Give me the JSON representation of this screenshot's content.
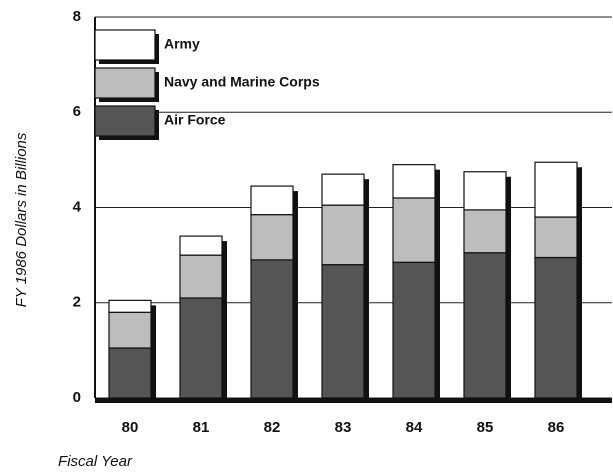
{
  "chart_data": {
    "type": "stacked_bar",
    "categories": [
      "80",
      "81",
      "82",
      "83",
      "84",
      "85",
      "86"
    ],
    "series": [
      {
        "name": "Air Force",
        "color": "#555555",
        "values": [
          1.05,
          2.1,
          2.9,
          2.8,
          2.85,
          3.05,
          2.95
        ]
      },
      {
        "name": "Navy and Marine Corps",
        "color": "#bdbdbd",
        "values": [
          0.75,
          0.9,
          0.95,
          1.25,
          1.35,
          0.9,
          0.85
        ]
      },
      {
        "name": "Army",
        "color": "#ffffff",
        "values": [
          0.25,
          0.4,
          0.6,
          0.65,
          0.7,
          0.8,
          1.15
        ]
      }
    ],
    "y_label": "FY 1986 Dollars in Billions",
    "x_label": "Fiscal Year",
    "ylim": [
      0,
      8
    ],
    "yticks": [
      0,
      2,
      4,
      6,
      8
    ],
    "grid": true,
    "legend": "upper left"
  }
}
